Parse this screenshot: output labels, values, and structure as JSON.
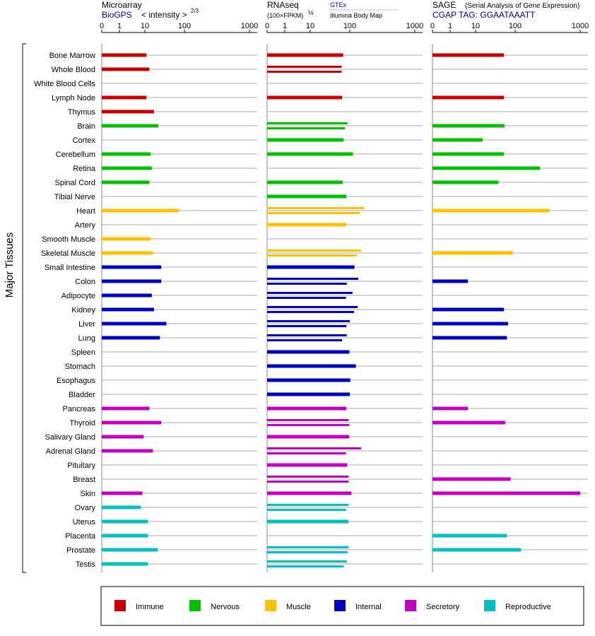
{
  "chart_data": {
    "type": "bar",
    "y_axis_label": "Major Tissues",
    "categories": [
      "Bone Marrow",
      "Whole Blood",
      "White Blood Cells",
      "Lymph Node",
      "Thymus",
      "Brain",
      "Cortex",
      "Cerebellum",
      "Retina",
      "Spinal Cord",
      "Tibial Nerve",
      "Heart",
      "Artery",
      "Smooth Muscle",
      "Skeletal Muscle",
      "Small Intestine",
      "Colon",
      "Adipocyte",
      "Kidney",
      "Liver",
      "Lung",
      "Spleen",
      "Stomach",
      "Esophagus",
      "Bladder",
      "Pancreas",
      "Thyroid",
      "Salivary Gland",
      "Adrenal Gland",
      "Pituitary",
      "Breast",
      "Skin",
      "Ovary",
      "Uterus",
      "Placenta",
      "Prostate",
      "Testis"
    ],
    "groups": [
      "immune",
      "immune",
      "immune",
      "immune",
      "immune",
      "nervous",
      "nervous",
      "nervous",
      "nervous",
      "nervous",
      "nervous",
      "muscle",
      "muscle",
      "muscle",
      "muscle",
      "internal",
      "internal",
      "internal",
      "internal",
      "internal",
      "internal",
      "internal",
      "internal",
      "internal",
      "internal",
      "secretory",
      "secretory",
      "secretory",
      "secretory",
      "secretory",
      "secretory",
      "secretory",
      "reproductive",
      "reproductive",
      "reproductive",
      "reproductive",
      "reproductive"
    ],
    "ticks": [
      0,
      1,
      10,
      100,
      1000
    ],
    "panels": [
      {
        "key": "microarray",
        "title": "Microarray",
        "source": "BioGPS",
        "scale_label": "< intensity >",
        "scale_exponent": "2/3",
        "values": [
          [
            11
          ],
          [
            13
          ],
          [],
          [
            11
          ],
          [
            17
          ],
          [
            22
          ],
          [],
          [
            14
          ],
          [
            15
          ],
          [
            13
          ],
          [],
          [
            72
          ],
          [],
          [
            14
          ],
          [
            16
          ],
          [
            26
          ],
          [
            26
          ],
          [
            15
          ],
          [
            17
          ],
          [
            35
          ],
          [
            24
          ],
          [],
          [],
          [],
          [],
          [
            13
          ],
          [
            26
          ],
          [
            9
          ],
          [
            16
          ],
          [],
          [],
          [
            8
          ],
          [
            7
          ],
          [
            12
          ],
          [
            12
          ],
          [
            21
          ],
          [
            12
          ]
        ]
      },
      {
        "key": "rnaseq",
        "title": "RNAseq",
        "scale_label": "(100×FPKM)",
        "scale_exponent": "½",
        "source_1": "GTEx",
        "source_2": "Illumina Body Map",
        "values": [
          [
            68
          ],
          [
            62,
            62
          ],
          [],
          [
            64
          ],
          [],
          [
            88,
            76
          ],
          [
            70
          ],
          [
            112
          ],
          [],
          [
            66
          ],
          [
            82
          ],
          [
            168,
            142
          ],
          [
            82
          ],
          [],
          [
            150,
            128
          ],
          [
            118
          ],
          [
            135,
            84
          ],
          [
            110,
            80
          ],
          [
            132,
            116
          ],
          [
            100,
            82
          ],
          [
            84,
            64
          ],
          [
            98
          ],
          [
            124
          ],
          [
            102
          ],
          [
            100
          ],
          [
            82
          ],
          [
            93,
            97
          ],
          [
            97
          ],
          [
            149,
            80
          ],
          [
            86
          ],
          [
            93,
            92
          ],
          [
            106
          ],
          [
            92,
            80
          ],
          [
            92
          ],
          [],
          [
            93,
            88
          ],
          [
            84,
            70
          ]
        ]
      },
      {
        "key": "sage",
        "title": "SAGE",
        "title_note": "(Serial Analysis of Gene Expression)",
        "tag_label": "CGAP TAG: GGAATAAATT",
        "values": [
          [
            52
          ],
          [],
          [],
          [
            52
          ],
          [],
          [
            54
          ],
          [
            15
          ],
          [
            52
          ],
          [
            242
          ],
          [
            38
          ],
          [],
          [
            335
          ],
          [],
          [],
          [
            88
          ],
          [],
          [
            5
          ],
          [],
          [
            52
          ],
          [
            66
          ],
          [
            62
          ],
          [],
          [],
          [],
          [],
          [
            5
          ],
          [
            56
          ],
          [],
          [],
          [],
          [
            77
          ],
          [
            1000
          ],
          [],
          [],
          [
            62
          ],
          [
            123
          ],
          []
        ]
      }
    ],
    "legend": [
      {
        "key": "immune",
        "label": "Immune",
        "color": "#c80000"
      },
      {
        "key": "nervous",
        "label": "Nervous",
        "color": "#00c000"
      },
      {
        "key": "muscle",
        "label": "Muscle",
        "color": "#ffc000"
      },
      {
        "key": "internal",
        "label": "Internal",
        "color": "#0000c0"
      },
      {
        "key": "secretory",
        "label": "Secretory",
        "color": "#c000c0"
      },
      {
        "key": "reproductive",
        "label": "Reproductive",
        "color": "#00c0c0"
      }
    ]
  }
}
